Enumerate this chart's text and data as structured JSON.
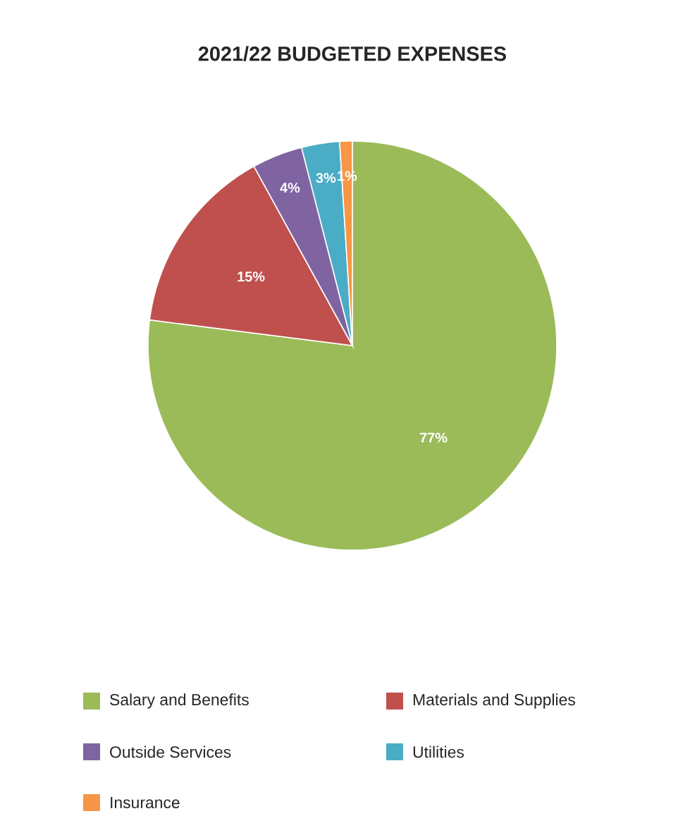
{
  "chart_data": {
    "type": "pie",
    "title": "2021/22 BUDGETED EXPENSES",
    "categories": [
      "Salary and Benefits",
      "Materials and Supplies",
      "Outside Services",
      "Utilities",
      "Insurance"
    ],
    "values": [
      77,
      15,
      4,
      3,
      1
    ],
    "colors": [
      "#9bbb59",
      "#c0504d",
      "#8064a2",
      "#4bacc6",
      "#f79646"
    ],
    "value_labels": [
      "77%",
      "15%",
      "4%",
      "3%",
      "1%"
    ],
    "legend": "bottom"
  }
}
